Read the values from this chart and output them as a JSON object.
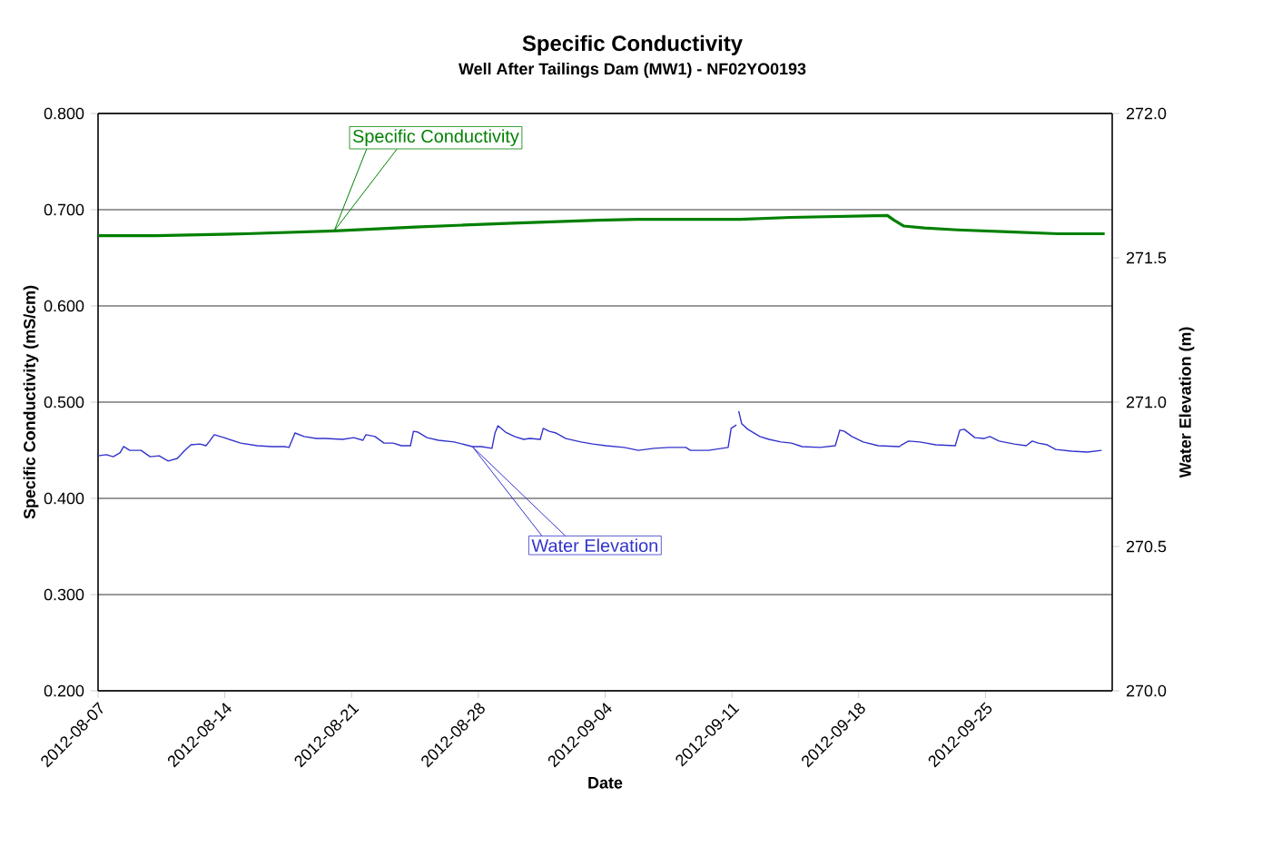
{
  "chart_data": {
    "type": "line",
    "title": "Specific Conductivity",
    "subtitle": "Well After Tailings Dam (MW1) - NF02YO0193",
    "xlabel": "Date",
    "ylabel": "Specific Conductivity (mS/cm)",
    "y2label": "Water Elevation (m)",
    "xlim": [
      "2012-08-07",
      "2012-10-02"
    ],
    "xticks": [
      "2012-08-07",
      "2012-08-14",
      "2012-08-21",
      "2012-08-28",
      "2012-09-04",
      "2012-09-11",
      "2012-09-18",
      "2012-09-25"
    ],
    "ylim": [
      0.2,
      0.8
    ],
    "yticks": [
      {
        "value": 0.2,
        "label": "0.200"
      },
      {
        "value": 0.3,
        "label": "0.300"
      },
      {
        "value": 0.4,
        "label": "0.400"
      },
      {
        "value": 0.5,
        "label": "0.500"
      },
      {
        "value": 0.6,
        "label": "0.600"
      },
      {
        "value": 0.7,
        "label": "0.700"
      },
      {
        "value": 0.8,
        "label": "0.800"
      }
    ],
    "y2lim": [
      270,
      272
    ],
    "y2ticks": [
      {
        "value": 270,
        "label": "270.0"
      },
      {
        "value": 270.5,
        "label": "270.5"
      },
      {
        "value": 271,
        "label": "271.0"
      },
      {
        "value": 271.5,
        "label": "271.5"
      },
      {
        "value": 272,
        "label": "272.0"
      }
    ],
    "grid": "y",
    "series": [
      {
        "name": "Specific Conductivity",
        "color": "#008000",
        "x": [
          "2012-08-07T00:00",
          "2012-08-10T04:00",
          "2012-08-15T04:00",
          "2012-08-20T01:00",
          "2012-08-24T12:00",
          "2012-08-27T05:00",
          "2012-08-29T21:00",
          "2012-09-03T13:00",
          "2012-09-05T18:00",
          "2012-09-11T11:00",
          "2012-09-14T06:00",
          "2012-09-19T14:00",
          "2012-09-19T23:00",
          "2012-09-20T12:00",
          "2012-09-21T15:00",
          "2012-09-23T11:00",
          "2012-09-26T06:00",
          "2012-09-29T00:00",
          "2012-10-01T14:00"
        ],
        "values": [
          0.673,
          0.673,
          0.675,
          0.678,
          0.682,
          0.684,
          0.686,
          0.689,
          0.69,
          0.69,
          0.692,
          0.694,
          0.689,
          0.683,
          0.681,
          0.679,
          0.677,
          0.675,
          0.675
        ]
      },
      {
        "name": "Water Elevation",
        "color": "#3333cc",
        "axis": "y2",
        "x": [
          "2012-08-07T00:00",
          "2012-08-07T11:00",
          "2012-08-07T20:00",
          "2012-08-08T05:00",
          "2012-08-08T10:00",
          "2012-08-08T18:00",
          "2012-08-09T09:00",
          "2012-08-09T21:00",
          "2012-08-10T09:00",
          "2012-08-10T21:00",
          "2012-08-11T09:00",
          "2012-08-11T18:00",
          "2012-08-12T03:00",
          "2012-08-12T15:00",
          "2012-08-12T23:00",
          "2012-08-13T03:00",
          "2012-08-13T10:00",
          "2012-08-13T23:00",
          "2012-08-14T21:00",
          "2012-08-15T19:00",
          "2012-08-16T15:00",
          "2012-08-17T07:00",
          "2012-08-17T13:00",
          "2012-08-17T21:00",
          "2012-08-18T09:00",
          "2012-08-19T01:00",
          "2012-08-19T13:00",
          "2012-08-20T12:00",
          "2012-08-21T03:00",
          "2012-08-21T15:00",
          "2012-08-21T19:00",
          "2012-08-22T07:00",
          "2012-08-22T19:00",
          "2012-08-23T07:00",
          "2012-08-23T18:00",
          "2012-08-24T06:00",
          "2012-08-24T10:00",
          "2012-08-24T16:00",
          "2012-08-25T04:00",
          "2012-08-25T19:00",
          "2012-08-26T16:00",
          "2012-08-27T16:00",
          "2012-08-28T04:00",
          "2012-08-28T18:00",
          "2012-08-28T22:00",
          "2012-08-29T02:00",
          "2012-08-29T12:00",
          "2012-08-30T00:00",
          "2012-08-30T12:00",
          "2012-08-30T20:00",
          "2012-08-31T10:00",
          "2012-08-31T14:00",
          "2012-08-31T22:00",
          "2012-09-01T07:00",
          "2012-09-01T20:00",
          "2012-09-02T16:00",
          "2012-09-03T08:00",
          "2012-09-04T01:00",
          "2012-09-05T01:00",
          "2012-09-05T20:00",
          "2012-09-06T17:00",
          "2012-09-07T13:00",
          "2012-09-08T11:00",
          "2012-09-08T17:00",
          "2012-09-09T17:00",
          "2012-09-10T19:00",
          "2012-09-10T23:00",
          "2012-09-11T06:00",
          "2012-09-11T08:00",
          "2012-09-11T09:00",
          "2012-09-11T13:00",
          "2012-09-11T21:00",
          "2012-09-12T13:00",
          "2012-09-13T01:00",
          "2012-09-13T17:00",
          "2012-09-14T07:00",
          "2012-09-14T21:00",
          "2012-09-15T21:00",
          "2012-09-16T17:00",
          "2012-09-16T23:00",
          "2012-09-17T05:00",
          "2012-09-17T15:00",
          "2012-09-18T06:00",
          "2012-09-19T02:00",
          "2012-09-20T06:00",
          "2012-09-20T09:00",
          "2012-09-20T18:00",
          "2012-09-21T09:00",
          "2012-09-22T06:00",
          "2012-09-23T08:00",
          "2012-09-23T14:00",
          "2012-09-23T20:00",
          "2012-09-24T10:00",
          "2012-09-24T22:00",
          "2012-09-25T06:00",
          "2012-09-25T18:00",
          "2012-09-26T14:00",
          "2012-09-27T06:00",
          "2012-09-27T14:00",
          "2012-09-27T22:00",
          "2012-09-28T10:00",
          "2012-09-28T21:00",
          "2012-09-29T18:00",
          "2012-09-30T15:00",
          "2012-10-01T10:00"
        ],
        "values": [
          270.814,
          270.818,
          270.811,
          270.824,
          270.846,
          270.833,
          270.833,
          270.811,
          270.814,
          270.796,
          270.805,
          270.83,
          270.852,
          270.855,
          270.849,
          270.862,
          270.887,
          270.877,
          270.858,
          270.849,
          270.846,
          270.846,
          270.843,
          270.893,
          270.881,
          270.874,
          270.874,
          270.871,
          270.877,
          270.868,
          270.887,
          270.881,
          270.858,
          270.858,
          270.849,
          270.849,
          270.899,
          270.896,
          270.877,
          270.868,
          270.862,
          270.846,
          270.846,
          270.84,
          270.893,
          270.918,
          270.896,
          270.881,
          270.871,
          270.874,
          270.871,
          270.909,
          270.899,
          270.893,
          270.874,
          270.862,
          270.855,
          270.849,
          270.843,
          270.833,
          270.84,
          270.843,
          270.843,
          270.833,
          270.833,
          270.843,
          270.909,
          270.921,
          null,
          270.969,
          270.925,
          270.906,
          270.881,
          270.871,
          270.862,
          270.858,
          270.846,
          270.843,
          270.849,
          270.903,
          270.899,
          270.881,
          270.862,
          270.849,
          270.846,
          270.852,
          270.865,
          270.862,
          270.852,
          270.849,
          270.903,
          270.906,
          270.877,
          270.874,
          270.881,
          270.865,
          270.855,
          270.849,
          270.865,
          270.858,
          270.852,
          270.836,
          270.83,
          270.827,
          270.833
        ]
      }
    ]
  }
}
